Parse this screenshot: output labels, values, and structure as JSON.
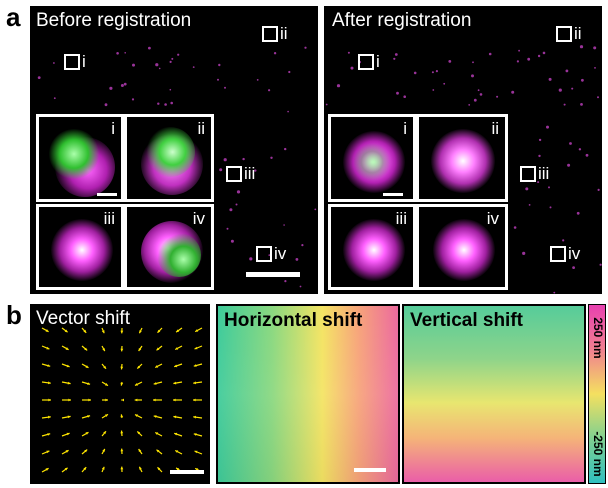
{
  "panel_a": {
    "letter": "a",
    "left": {
      "title": "Before registration",
      "rois": [
        "i",
        "ii",
        "iii",
        "iv"
      ],
      "insets": [
        "i",
        "ii",
        "iii",
        "iv"
      ]
    },
    "right": {
      "title": "After registration",
      "rois": [
        "i",
        "ii",
        "iii",
        "iv"
      ],
      "insets": [
        "i",
        "ii",
        "iii",
        "iv"
      ]
    }
  },
  "panel_b": {
    "letter": "b",
    "vector_title": "Vector shift",
    "horizontal_title": "Horizontal shift",
    "vertical_title": "Vertical shift",
    "colorbar_top": "250 nm",
    "colorbar_bottom": "-250 nm"
  },
  "colors": {
    "magenta": "#e040e0",
    "green": "#40e040",
    "arrow": "#ffe600"
  }
}
